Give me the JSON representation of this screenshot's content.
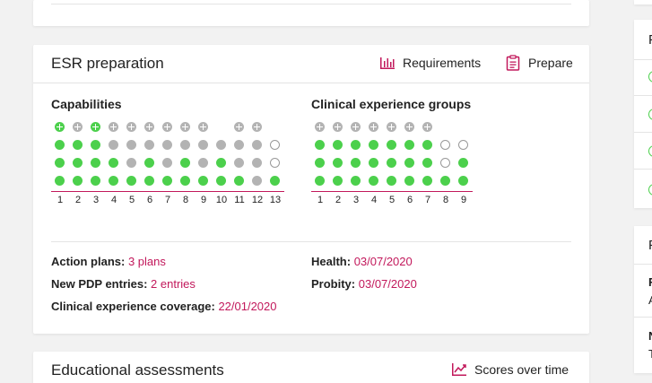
{
  "esr": {
    "title": "ESR preparation",
    "requirements_label": "Requirements",
    "prepare_label": "Prepare",
    "capabilities": {
      "title": "Capabilities",
      "columns": [
        "1",
        "2",
        "3",
        "4",
        "5",
        "6",
        "7",
        "8",
        "9",
        "10",
        "11",
        "12",
        "13"
      ],
      "rows": [
        [
          "pg",
          "p",
          "pg",
          "p",
          "p",
          "p",
          "p",
          "p",
          "p",
          "",
          "p",
          "p",
          ""
        ],
        [
          "g",
          "g",
          "g",
          "x",
          "x",
          "x",
          "x",
          "x",
          "x",
          "x",
          "x",
          "x",
          "e"
        ],
        [
          "g",
          "g",
          "g",
          "g",
          "x",
          "g",
          "x",
          "g",
          "x",
          "g",
          "x",
          "x",
          "e"
        ],
        [
          "g",
          "g",
          "g",
          "g",
          "g",
          "g",
          "g",
          "g",
          "g",
          "g",
          "g",
          "x",
          "g"
        ]
      ]
    },
    "clinical": {
      "title": "Clinical experience groups",
      "columns": [
        "1",
        "2",
        "3",
        "4",
        "5",
        "6",
        "7",
        "8",
        "9"
      ],
      "rows": [
        [
          "p",
          "p",
          "p",
          "p",
          "p",
          "p",
          "p",
          "",
          ""
        ],
        [
          "g",
          "g",
          "g",
          "g",
          "g",
          "g",
          "g",
          "e",
          "e"
        ],
        [
          "g",
          "g",
          "g",
          "g",
          "g",
          "g",
          "g",
          "e",
          "g"
        ],
        [
          "g",
          "g",
          "g",
          "g",
          "g",
          "g",
          "g",
          "g",
          "g"
        ]
      ]
    },
    "info": {
      "action_plans_label": "Action plans:",
      "action_plans_value": "3 plans",
      "pdp_label": "New PDP entries:",
      "pdp_value": "2 entries",
      "coverage_label": "Clinical experience coverage:",
      "coverage_value": "22/01/2020",
      "health_label": "Health:",
      "health_value": "03/07/2020",
      "probity_label": "Probity:",
      "probity_value": "03/07/2020"
    },
    "colors": {
      "accent": "#c2185b",
      "done": "#4cd04c",
      "pending": "#b3b3b3"
    }
  },
  "educational": {
    "title": "Educational assessments",
    "scores_label": "Scores over time"
  },
  "side": {
    "card1_letter": "F",
    "card2_letter": "F",
    "card2_row1_a": "F",
    "card2_row1_b": "A",
    "card2_row2_a": "N",
    "card2_row2_b": "T"
  }
}
